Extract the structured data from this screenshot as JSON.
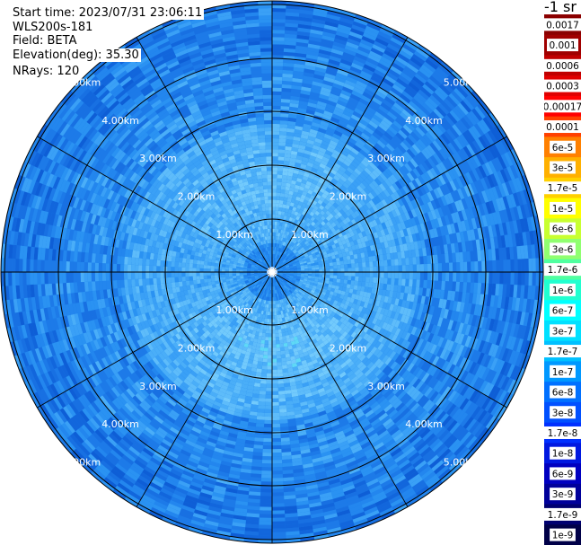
{
  "info": {
    "start_time": "Start time: 2023/07/31 23:06:11",
    "instrument": "WLS200s-181",
    "field": "Field: BETA",
    "elevation": "Elevation(deg): 35.30",
    "nrays": "NRays: 120"
  },
  "colorbar": {
    "title": "-1 sr",
    "ticks": [
      "0.0017",
      "0.001",
      "0.0006",
      "0.0003",
      "0.00017",
      "0.0001",
      "6e-5",
      "3e-5",
      "1.7e-5",
      "1e-5",
      "6e-6",
      "3e-6",
      "1.7e-6",
      "1e-6",
      "6e-7",
      "3e-7",
      "1.7e-7",
      "1e-7",
      "6e-8",
      "3e-8",
      "1.7e-8",
      "1e-8",
      "6e-9",
      "3e-9",
      "1.7e-9",
      "1e-9"
    ],
    "colors": [
      "#8b0000",
      "#a00000",
      "#c00000",
      "#e00000",
      "#ff0000",
      "#ff4000",
      "#ff8000",
      "#ffb000",
      "#ffd000",
      "#ffff00",
      "#c8ff30",
      "#90ff70",
      "#50ffa0",
      "#20ffd0",
      "#00ffff",
      "#00e0ff",
      "#00c0ff",
      "#0098ff",
      "#0070ff",
      "#0050ff",
      "#0030ff",
      "#0018e0",
      "#0000c0",
      "#00009a",
      "#000070",
      "#000048"
    ]
  },
  "range_labels": [
    "1.00km",
    "2.00km",
    "3.00km",
    "4.00km",
    "5.00km"
  ],
  "plot_colors": {
    "background": "#1a7ee8",
    "ring_line": "#000000",
    "spoke_line": "#000000"
  }
}
